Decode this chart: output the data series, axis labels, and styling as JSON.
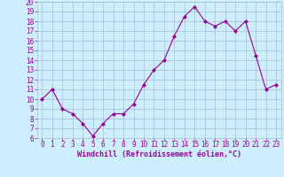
{
  "x": [
    0,
    1,
    2,
    3,
    4,
    5,
    6,
    7,
    8,
    9,
    10,
    11,
    12,
    13,
    14,
    15,
    16,
    17,
    18,
    19,
    20,
    21,
    22,
    23
  ],
  "y": [
    10,
    11,
    9,
    8.5,
    7.5,
    6.2,
    7.5,
    8.5,
    8.5,
    9.5,
    11.5,
    13,
    14,
    16.5,
    18.5,
    19.5,
    18,
    17.5,
    18,
    17,
    18,
    14.5,
    11,
    11.5
  ],
  "line_color": "#990099",
  "marker": "D",
  "bg_color": "#cceeff",
  "grid_color": "#aabbcc",
  "xlabel": "Windchill (Refroidissement éolien,°C)",
  "xlabel_color": "#990099",
  "tick_color": "#990099",
  "ylim": [
    6,
    20
  ],
  "xlim_min": -0.5,
  "xlim_max": 23.5,
  "yticks": [
    6,
    7,
    8,
    9,
    10,
    11,
    12,
    13,
    14,
    15,
    16,
    17,
    18,
    19,
    20
  ],
  "xticks": [
    0,
    1,
    2,
    3,
    4,
    5,
    6,
    7,
    8,
    9,
    10,
    11,
    12,
    13,
    14,
    15,
    16,
    17,
    18,
    19,
    20,
    21,
    22,
    23
  ],
  "font_size": 5.5,
  "xlabel_font_size": 6.0
}
